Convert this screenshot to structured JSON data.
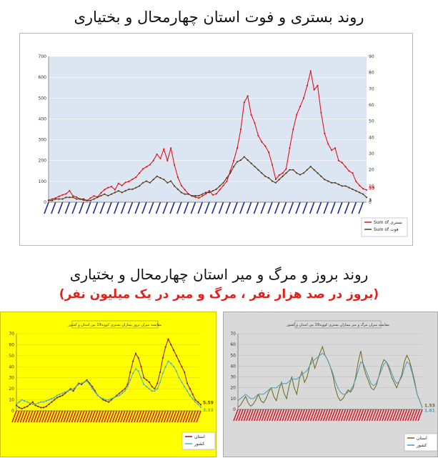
{
  "header": {
    "title": "روند بستری و فوت استان چهارمحال و بختیاری",
    "section2_title": "روند بروز و مرگ و میر استان چهارمحال و بختیاری",
    "section2_subtitle": "(بروز در صد هزار نفر ، مرگ و میر در یک میلیون نفر)"
  },
  "chart_data": [
    {
      "type": "line",
      "title": "",
      "yleft_ticks": [
        0,
        100,
        200,
        300,
        400,
        500,
        600,
        700
      ],
      "yright_ticks": [
        0,
        10,
        20,
        30,
        40,
        50,
        60,
        70,
        80,
        90
      ],
      "legend": [
        "Sum of بستری",
        "Sum of فوت"
      ],
      "legend_position": "bottom-right",
      "end_labels": [
        "59",
        "3"
      ],
      "colors": {
        "series1": "#e3141b",
        "series2": "#5a3a1a",
        "plot_bg": "#dce6f2"
      },
      "series": [
        {
          "name": "Sum of بستری",
          "values": [
            10,
            15,
            20,
            28,
            35,
            40,
            55,
            30,
            25,
            15,
            10,
            8,
            20,
            30,
            25,
            45,
            60,
            70,
            75,
            60,
            90,
            80,
            95,
            100,
            110,
            120,
            140,
            160,
            170,
            180,
            200,
            230,
            210,
            255,
            200,
            260,
            180,
            120,
            80,
            60,
            40,
            30,
            25,
            20,
            30,
            40,
            55,
            35,
            40,
            60,
            80,
            100,
            150,
            200,
            260,
            350,
            480,
            510,
            420,
            380,
            320,
            290,
            270,
            240,
            180,
            110,
            130,
            140,
            160,
            260,
            350,
            420,
            460,
            500,
            560,
            630,
            540,
            560,
            430,
            330,
            280,
            250,
            260,
            200,
            190,
            170,
            150,
            140,
            100,
            80,
            65,
            59
          ]
        },
        {
          "name": "Sum of فوت",
          "values": [
            1,
            1,
            2,
            2,
            2,
            3,
            3,
            3,
            2,
            2,
            2,
            1,
            1,
            2,
            3,
            4,
            5,
            4,
            5,
            6,
            7,
            6,
            7,
            8,
            8,
            9,
            10,
            12,
            13,
            12,
            14,
            16,
            15,
            14,
            12,
            13,
            10,
            8,
            6,
            5,
            5,
            4,
            4,
            4,
            5,
            6,
            6,
            7,
            8,
            10,
            12,
            15,
            18,
            22,
            25,
            26,
            28,
            26,
            24,
            22,
            20,
            18,
            16,
            15,
            13,
            12,
            14,
            16,
            18,
            20,
            20,
            18,
            17,
            18,
            20,
            22,
            20,
            18,
            16,
            14,
            13,
            12,
            12,
            11,
            10,
            10,
            9,
            8,
            7,
            6,
            5,
            3
          ]
        }
      ]
    },
    {
      "type": "line",
      "title": "مقایسه میزان بروز بیماران بستری کووید19 بین استان و کشور",
      "y_ticks": [
        0,
        10,
        20,
        30,
        40,
        50,
        60,
        70
      ],
      "legend": [
        "استان",
        "کشور"
      ],
      "end_labels": [
        "5.59",
        "3.33"
      ],
      "colors": {
        "series1": "#8b1a1a",
        "series2": "#4ab0c8",
        "bg": "#ffff00"
      },
      "series": [
        {
          "name": "استان",
          "values": [
            5,
            3,
            2,
            3,
            4,
            6,
            8,
            5,
            4,
            3,
            3,
            4,
            6,
            8,
            10,
            12,
            13,
            14,
            16,
            18,
            20,
            18,
            22,
            25,
            24,
            26,
            28,
            25,
            22,
            18,
            14,
            12,
            10,
            9,
            8,
            10,
            12,
            14,
            16,
            18,
            20,
            24,
            35,
            45,
            52,
            48,
            40,
            30,
            28,
            26,
            22,
            20,
            25,
            35,
            48,
            58,
            65,
            60,
            55,
            50,
            45,
            40,
            35,
            25,
            20,
            15,
            10,
            8,
            5.59
          ]
        },
        {
          "name": "کشور",
          "values": [
            6,
            8,
            10,
            9,
            8,
            7,
            6,
            6,
            7,
            8,
            8,
            9,
            10,
            11,
            12,
            14,
            15,
            16,
            17,
            18,
            19,
            20,
            22,
            24,
            25,
            26,
            27,
            24,
            20,
            17,
            14,
            12,
            11,
            10,
            10,
            11,
            12,
            13,
            14,
            16,
            18,
            22,
            28,
            34,
            38,
            36,
            30,
            24,
            22,
            20,
            18,
            18,
            20,
            26,
            34,
            40,
            45,
            43,
            40,
            36,
            30,
            26,
            22,
            18,
            14,
            11,
            8,
            6,
            3.33
          ]
        }
      ]
    },
    {
      "type": "line",
      "title": "مقایسه میزان مرگ و میر بیماران بستری کووید19 بین استان و کشور",
      "y_ticks": [
        0,
        10,
        20,
        30,
        40,
        50,
        60,
        70
      ],
      "legend": [
        "استان",
        "کشور"
      ],
      "end_labels": [
        "1.53",
        "1.61"
      ],
      "colors": {
        "series1": "#6b6a1a",
        "series2": "#4a9ab8",
        "bg": "#d9d9d9"
      },
      "series": [
        {
          "name": "استان",
          "values": [
            2,
            4,
            8,
            12,
            6,
            3,
            5,
            9,
            14,
            8,
            6,
            10,
            16,
            20,
            12,
            8,
            18,
            25,
            15,
            10,
            22,
            30,
            20,
            14,
            28,
            35,
            25,
            30,
            40,
            48,
            38,
            45,
            52,
            58,
            50,
            46,
            40,
            32,
            20,
            12,
            8,
            10,
            14,
            18,
            16,
            20,
            30,
            44,
            54,
            40,
            32,
            26,
            20,
            18,
            22,
            30,
            40,
            46,
            44,
            38,
            30,
            25,
            20,
            26,
            32,
            44,
            50,
            45,
            36,
            26,
            14,
            8,
            1.53
          ]
        },
        {
          "name": "کشور",
          "values": [
            8,
            10,
            12,
            14,
            12,
            10,
            10,
            12,
            14,
            14,
            14,
            16,
            18,
            20,
            20,
            20,
            22,
            24,
            24,
            24,
            26,
            28,
            28,
            28,
            30,
            32,
            34,
            36,
            40,
            44,
            46,
            48,
            50,
            52,
            50,
            46,
            40,
            34,
            26,
            20,
            16,
            14,
            14,
            16,
            18,
            22,
            28,
            36,
            44,
            42,
            36,
            30,
            24,
            22,
            24,
            30,
            36,
            42,
            44,
            40,
            34,
            28,
            24,
            26,
            30,
            38,
            44,
            42,
            34,
            24,
            14,
            8,
            1.61
          ]
        }
      ]
    }
  ]
}
